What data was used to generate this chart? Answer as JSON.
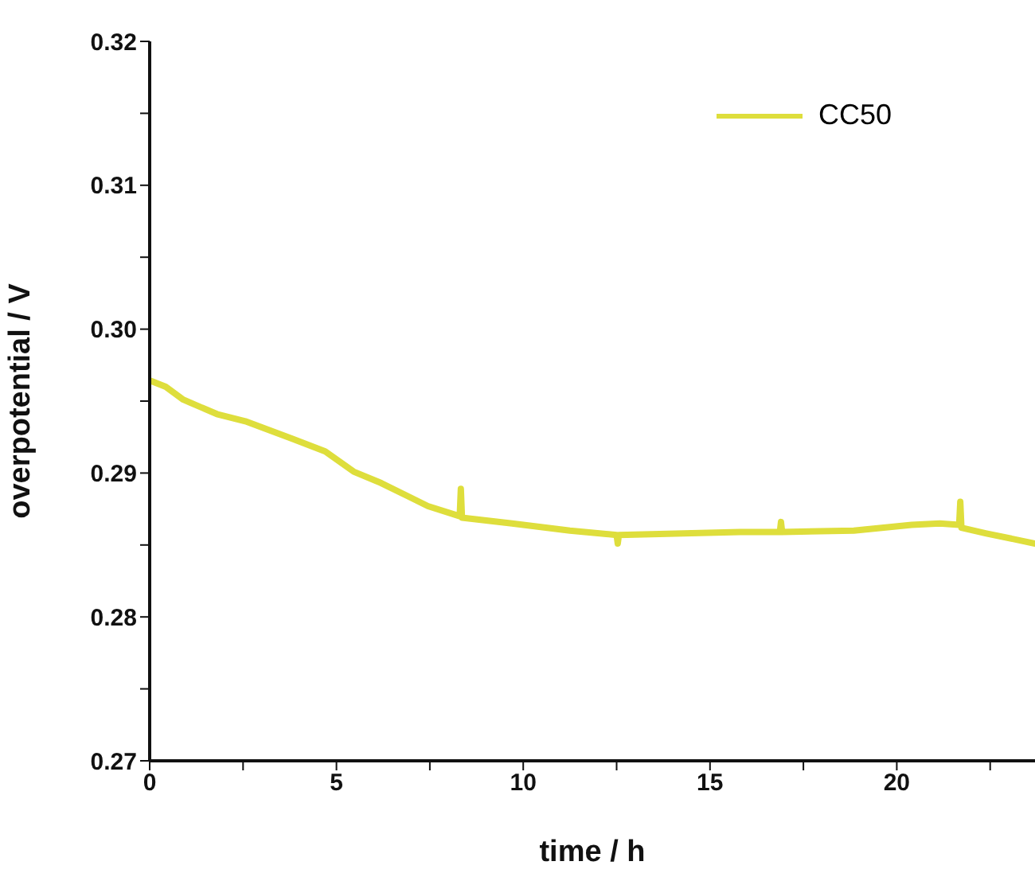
{
  "chart_data": {
    "type": "line",
    "xlabel": "time / h",
    "ylabel": "overpotential / V",
    "x": [
      0.04,
      0.43,
      0.9,
      1.8,
      2.56,
      3.8,
      4.7,
      5.46,
      6.2,
      7.45,
      8.3,
      8.33,
      8.36,
      9.7,
      11.25,
      12.5,
      12.53,
      12.56,
      14.3,
      15.8,
      16.87,
      16.9,
      16.93,
      18.85,
      20.4,
      21.15,
      21.67,
      21.7,
      21.73,
      22.4,
      23.7
    ],
    "series": [
      {
        "name": "CC50",
        "color": "#dede3c",
        "values": [
          0.2964,
          0.296,
          0.2951,
          0.2941,
          0.2936,
          0.2924,
          0.2915,
          0.2901,
          0.2893,
          0.2877,
          0.287,
          0.2889,
          0.2869,
          0.2865,
          0.286,
          0.2857,
          0.2851,
          0.2857,
          0.2858,
          0.2859,
          0.2859,
          0.2866,
          0.2859,
          0.286,
          0.2864,
          0.2865,
          0.2864,
          0.288,
          0.2862,
          0.2858,
          0.2851
        ]
      }
    ],
    "xlim": [
      0,
      23.7
    ],
    "xticks": [
      0,
      {
        "value": 2.5,
        "label": null
      },
      5,
      {
        "value": 7.5,
        "label": null
      },
      10,
      {
        "value": 12.5,
        "label": null
      },
      15,
      {
        "value": 17.5,
        "label": null
      },
      20,
      {
        "value": 22.5,
        "label": null
      }
    ],
    "ylim": [
      0.27,
      0.32
    ],
    "yticks": [
      0.27,
      {
        "value": 0.275,
        "label": null
      },
      0.28,
      {
        "value": 0.285,
        "label": null
      },
      0.29,
      {
        "value": 0.295,
        "label": null
      },
      {
        "value": 0.3,
        "label": "0.30"
      },
      {
        "value": 0.305,
        "label": null
      },
      0.31,
      {
        "value": 0.315,
        "label": null
      },
      0.32
    ],
    "legend": "top right",
    "grid": false,
    "marker": "none",
    "line_style": "solid"
  }
}
